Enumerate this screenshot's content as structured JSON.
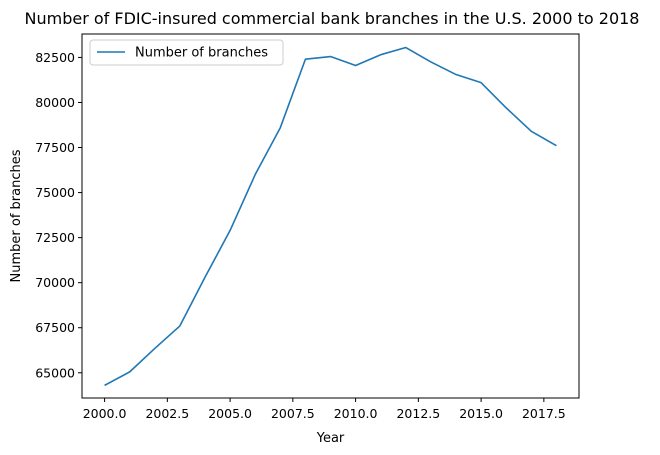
{
  "chart_data": {
    "type": "line",
    "title": "Number of FDIC-insured commercial bank branches in the U.S. 2000 to 2018",
    "xlabel": "Year",
    "ylabel": "Number of branches",
    "xlim": [
      1999.1,
      2018.9
    ],
    "ylim": [
      63600,
      83800
    ],
    "xticks": [
      2000.0,
      2002.5,
      2005.0,
      2007.5,
      2010.0,
      2012.5,
      2015.0,
      2017.5
    ],
    "xtick_labels": [
      "2000.0",
      "2002.5",
      "2005.0",
      "2007.5",
      "2010.0",
      "2012.5",
      "2015.0",
      "2017.5"
    ],
    "yticks": [
      65000,
      67500,
      70000,
      72500,
      75000,
      77500,
      80000,
      82500
    ],
    "ytick_labels": [
      "65000",
      "67500",
      "70000",
      "72500",
      "75000",
      "77500",
      "80000",
      "82500"
    ],
    "grid": false,
    "legend_position": "upper-left",
    "series": [
      {
        "name": "Number of branches",
        "color": "#1f77b4",
        "x": [
          2000,
          2001,
          2002,
          2003,
          2004,
          2005,
          2006,
          2007,
          2008,
          2009,
          2010,
          2011,
          2012,
          2013,
          2014,
          2015,
          2016,
          2017,
          2018
        ],
        "y": [
          64300,
          65050,
          66350,
          67600,
          70300,
          72900,
          76000,
          78600,
          82400,
          82550,
          82050,
          82650,
          83050,
          82250,
          81550,
          81100,
          79700,
          78400,
          77600
        ]
      }
    ]
  }
}
